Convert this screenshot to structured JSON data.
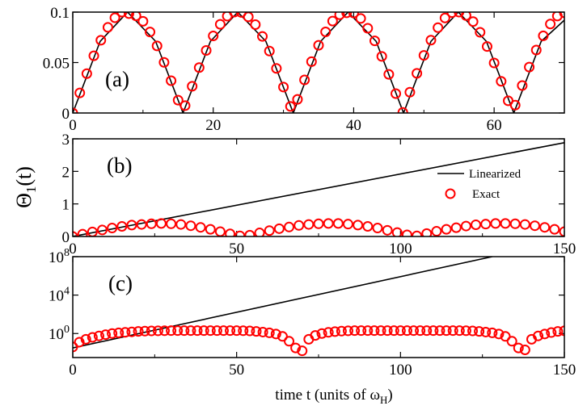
{
  "figure": {
    "y_axis_label": "Θ",
    "y_axis_label_sub": "1",
    "y_axis_label_tail": "(t)",
    "x_axis_label": "time t (units of ω",
    "x_axis_label_sub": "H",
    "x_axis_label_tail": ")"
  },
  "legend": {
    "linearized": "Linearized",
    "exact": "Exact"
  },
  "colors": {
    "line": "#000000",
    "marker": "#ff0000"
  },
  "chart_data": [
    {
      "panel": "(a)",
      "type": "line",
      "xlim": [
        0,
        70
      ],
      "ylim": [
        0,
        0.1
      ],
      "xticks": [
        0,
        20,
        40,
        60
      ],
      "xtick_labels": [
        "0",
        "20",
        "40",
        "60"
      ],
      "yticks": [
        0,
        0.05,
        0.1
      ],
      "ytick_labels": [
        "0",
        "0.05",
        "0.1"
      ],
      "series": [
        {
          "name": "Linearized",
          "style": "line",
          "x": [
            0,
            3.9,
            7.8,
            11.8,
            15.7,
            19.6,
            23.5,
            27.5,
            31.4,
            35.3,
            39.2,
            43.2,
            47.1,
            51.0,
            54.9,
            58.9,
            62.8,
            66.7,
            70
          ],
          "y": [
            0,
            0.071,
            0.1,
            0.071,
            0,
            0.071,
            0.1,
            0.071,
            0,
            0.071,
            0.1,
            0.071,
            0,
            0.071,
            0.1,
            0.071,
            0,
            0.071,
            0.092
          ]
        },
        {
          "name": "Exact",
          "style": "circle",
          "x": [
            0,
            1,
            2,
            3,
            4,
            5,
            6,
            7,
            8,
            9,
            10,
            11,
            12,
            13,
            14,
            15,
            16,
            17,
            18,
            19,
            20,
            21,
            22,
            23,
            24,
            25,
            26,
            27,
            28,
            29,
            30,
            31,
            32,
            33,
            34,
            35,
            36,
            37,
            38,
            39,
            40,
            41,
            42,
            43,
            44,
            45,
            46,
            47,
            48,
            49,
            50,
            51,
            52,
            53,
            54,
            55,
            56,
            57,
            58,
            59,
            60,
            61,
            62,
            63,
            64,
            65,
            66,
            67,
            68,
            69,
            70
          ],
          "y": [
            0.0,
            0.0199,
            0.039,
            0.0567,
            0.0721,
            0.0849,
            0.0944,
            0.1,
            0.0985,
            0.0963,
            0.0909,
            0.0803,
            0.0665,
            0.0502,
            0.032,
            0.0127,
            0.0073,
            0.0265,
            0.045,
            0.062,
            0.0764,
            0.0879,
            0.096,
            0.1,
            0.0997,
            0.0953,
            0.0876,
            0.0759,
            0.0614,
            0.0442,
            0.0257,
            0.0065,
            0.0135,
            0.0328,
            0.0509,
            0.0671,
            0.0804,
            0.0911,
            0.0974,
            0.0993,
            0.0991,
            0.0937,
            0.084,
            0.0715,
            0.0561,
            0.0383,
            0.0192,
            0.0006,
            0.0206,
            0.0393,
            0.0571,
            0.0722,
            0.0846,
            0.0942,
            0.0995,
            0.1,
            0.0966,
            0.0906,
            0.08,
            0.0659,
            0.0496,
            0.0314,
            0.0121,
            0.0078,
            0.0272,
            0.0455,
            0.0624,
            0.0765,
            0.0882,
            0.0961,
            0.0993
          ]
        }
      ]
    },
    {
      "panel": "(b)",
      "type": "line",
      "xlim": [
        0,
        150
      ],
      "ylim": [
        0,
        3
      ],
      "xticks": [
        0,
        50,
        100,
        150
      ],
      "xtick_labels": [
        "0",
        "50",
        "100",
        "150"
      ],
      "yticks": [
        0,
        1,
        2,
        3
      ],
      "ytick_labels": [
        "0",
        "1",
        "2",
        "3"
      ],
      "series": [
        {
          "name": "Linearized",
          "style": "line",
          "x": [
            0,
            150
          ],
          "y": [
            0,
            2.88
          ]
        },
        {
          "name": "Exact",
          "style": "circle",
          "x": [
            0,
            3,
            6,
            9,
            12,
            15,
            18,
            21,
            24,
            27,
            30,
            33,
            36,
            39,
            42,
            45,
            48,
            51,
            54,
            57,
            60,
            63,
            66,
            69,
            72,
            75,
            78,
            81,
            84,
            87,
            90,
            93,
            96,
            99,
            102,
            105,
            108,
            111,
            114,
            117,
            120,
            123,
            126,
            129,
            132,
            135,
            138,
            141,
            144,
            147,
            150
          ],
          "y": [
            0.0,
            0.07,
            0.14,
            0.2,
            0.26,
            0.31,
            0.35,
            0.37,
            0.39,
            0.4,
            0.39,
            0.37,
            0.33,
            0.28,
            0.22,
            0.15,
            0.08,
            0.02,
            0.04,
            0.11,
            0.18,
            0.24,
            0.29,
            0.34,
            0.37,
            0.39,
            0.4,
            0.4,
            0.38,
            0.35,
            0.31,
            0.26,
            0.19,
            0.12,
            0.05,
            0.02,
            0.09,
            0.16,
            0.22,
            0.27,
            0.32,
            0.36,
            0.38,
            0.4,
            0.4,
            0.39,
            0.37,
            0.33,
            0.28,
            0.22,
            0.15
          ]
        }
      ]
    },
    {
      "panel": "(c)",
      "type": "line",
      "yscale": "log",
      "xlim": [
        0,
        150
      ],
      "ylim_exponent": [
        -2.5,
        8
      ],
      "xticks": [
        0,
        50,
        100,
        150
      ],
      "xtick_labels": [
        "0",
        "50",
        "100",
        "150"
      ],
      "yticks_exponent": [
        0,
        4,
        8
      ],
      "ytick_base": "10",
      "ytick_exponent_labels": [
        "0",
        "4",
        "8"
      ],
      "series": [
        {
          "name": "Linearized",
          "style": "line",
          "x": [
            0,
            128
          ],
          "log10_y": [
            -1.5,
            8
          ]
        },
        {
          "name": "Exact",
          "style": "circle",
          "x": [
            0,
            2,
            4,
            6,
            8,
            10,
            12,
            14,
            16,
            18,
            20,
            22,
            24,
            26,
            28,
            30,
            32,
            34,
            36,
            38,
            40,
            42,
            44,
            46,
            48,
            50,
            52,
            54,
            56,
            58,
            60,
            62,
            64,
            66,
            68,
            70,
            72,
            74,
            76,
            78,
            80,
            82,
            84,
            86,
            88,
            90,
            92,
            94,
            96,
            98,
            100,
            102,
            104,
            106,
            108,
            110,
            112,
            114,
            116,
            118,
            120,
            122,
            124,
            126,
            128,
            130,
            132,
            134,
            136,
            138,
            140,
            142,
            144,
            146,
            148,
            150
          ],
          "log10_y": [
            -1.4,
            -0.9,
            -0.6,
            -0.4,
            -0.25,
            -0.12,
            0.0,
            0.07,
            0.12,
            0.17,
            0.22,
            0.25,
            0.27,
            0.28,
            0.29,
            0.3,
            0.3,
            0.3,
            0.3,
            0.3,
            0.3,
            0.3,
            0.3,
            0.3,
            0.3,
            0.3,
            0.29,
            0.27,
            0.22,
            0.15,
            0.07,
            -0.05,
            -0.3,
            -0.8,
            -1.5,
            -1.8,
            -0.6,
            -0.2,
            0.0,
            0.12,
            0.2,
            0.25,
            0.28,
            0.3,
            0.3,
            0.3,
            0.3,
            0.3,
            0.3,
            0.3,
            0.3,
            0.3,
            0.3,
            0.3,
            0.3,
            0.3,
            0.3,
            0.3,
            0.3,
            0.3,
            0.29,
            0.27,
            0.22,
            0.15,
            0.07,
            -0.05,
            -0.3,
            -0.8,
            -1.5,
            -1.7,
            -0.6,
            -0.25,
            -0.05,
            0.1,
            0.22,
            0.28
          ]
        }
      ]
    }
  ]
}
